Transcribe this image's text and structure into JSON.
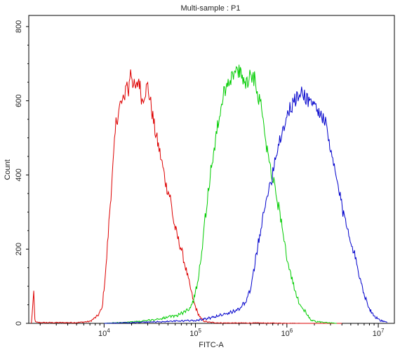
{
  "chart_data": {
    "type": "line",
    "title": "Multi-sample : P1",
    "xlabel": "FITC-A",
    "ylabel": "Count",
    "x_scale": "log",
    "xlim": [
      1500,
      15000000
    ],
    "ylim": [
      0,
      830
    ],
    "grid": false,
    "legend": "none",
    "x_ticks": [
      {
        "value": 10000,
        "base": "10",
        "exp": "4"
      },
      {
        "value": 100000,
        "base": "10",
        "exp": "5"
      },
      {
        "value": 1000000,
        "base": "10",
        "exp": "6"
      },
      {
        "value": 10000000,
        "base": "10",
        "exp": "7"
      }
    ],
    "y_ticks": [
      {
        "value": 0,
        "label": "0"
      },
      {
        "value": 200,
        "label": "200"
      },
      {
        "value": 400,
        "label": "400"
      },
      {
        "value": 600,
        "label": "600"
      },
      {
        "value": 800,
        "label": "800"
      }
    ],
    "series": [
      {
        "color": "#dd0000",
        "x": [
          1600,
          1700,
          1750,
          1800,
          2000,
          3000,
          5000,
          7000,
          8500,
          9500,
          10500,
          11500,
          12500,
          13500,
          15000,
          16500,
          17500,
          18500,
          19500,
          21000,
          22500,
          24000,
          26000,
          28000,
          30000,
          33000,
          36000,
          40000,
          44000,
          48000,
          53000,
          58000,
          64000,
          70000,
          78000,
          85000,
          95000,
          105000,
          115000,
          125000,
          140000,
          160000,
          200000,
          500000,
          1500000,
          4000000
        ],
        "values": [
          0,
          80,
          10,
          3,
          2,
          2,
          2,
          5,
          20,
          40,
          150,
          300,
          420,
          540,
          590,
          600,
          655,
          620,
          690,
          640,
          630,
          660,
          600,
          625,
          640,
          580,
          520,
          470,
          420,
          370,
          340,
          270,
          230,
          200,
          150,
          110,
          60,
          30,
          12,
          6,
          3,
          2,
          1,
          1,
          0,
          0
        ]
      },
      {
        "color": "#00cc00",
        "x": [
          10000,
          25000,
          40000,
          60000,
          75000,
          85000,
          95000,
          105000,
          115000,
          130000,
          145000,
          160000,
          180000,
          200000,
          220000,
          240000,
          260000,
          290000,
          320000,
          360000,
          400000,
          450000,
          500000,
          550000,
          600000,
          650000,
          720000,
          800000,
          900000,
          1000000,
          1100000,
          1250000,
          1400000,
          1600000,
          1800000,
          2100000,
          2600000,
          3500000
        ],
        "values": [
          0,
          5,
          12,
          20,
          30,
          40,
          60,
          110,
          180,
          300,
          400,
          470,
          550,
          610,
          650,
          660,
          670,
          680,
          665,
          650,
          670,
          660,
          600,
          560,
          480,
          430,
          380,
          320,
          260,
          170,
          130,
          80,
          50,
          30,
          10,
          5,
          2,
          0
        ]
      },
      {
        "color": "#0000cc",
        "x": [
          10000,
          50000,
          100000,
          150000,
          200000,
          250000,
          300000,
          330000,
          360000,
          400000,
          440000,
          480000,
          520000,
          570000,
          620000,
          680000,
          750000,
          820000,
          900000,
          1000000,
          1100000,
          1200000,
          1350000,
          1500000,
          1650000,
          1800000,
          2000000,
          2200000,
          2450000,
          2700000,
          3000000,
          3300000,
          3700000,
          4100000,
          4600000,
          5200000,
          5800000,
          6500000,
          7200000,
          8000000,
          9000000,
          10500000,
          12500000
        ],
        "values": [
          0,
          5,
          8,
          15,
          25,
          30,
          40,
          50,
          60,
          90,
          150,
          210,
          260,
          300,
          360,
          390,
          450,
          490,
          520,
          560,
          580,
          600,
          610,
          625,
          605,
          600,
          590,
          570,
          560,
          530,
          460,
          420,
          360,
          300,
          260,
          210,
          160,
          110,
          70,
          40,
          20,
          8,
          2
        ]
      }
    ]
  }
}
